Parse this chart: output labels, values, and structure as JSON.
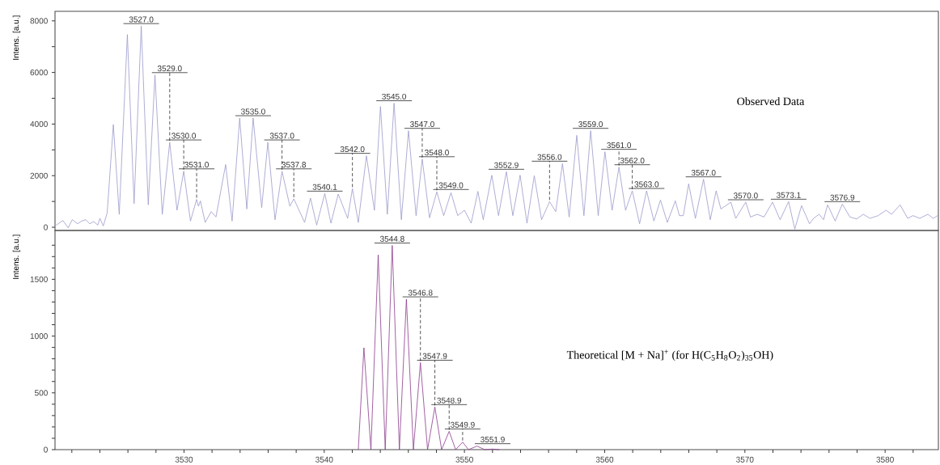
{
  "chart_data": [
    {
      "type": "line",
      "ylabel": "Intens. [a.u.]",
      "tick_labels": "y",
      "xlim": [
        3520.8,
        3583.8
      ],
      "ylim": [
        -125,
        8370
      ],
      "yticks": [
        0,
        {
          "value": 1000,
          "label": null
        },
        2000,
        {
          "value": 3000,
          "label": null
        },
        4000,
        {
          "value": 5000,
          "label": null
        },
        6000,
        {
          "value": 7000,
          "label": null
        },
        8000
      ],
      "x": [
        3520.88,
        3521.36,
        3521.74,
        3522.03,
        3522.41,
        3522.7,
        3522.99,
        3523.28,
        3523.56,
        3523.85,
        3524.0,
        3524.24,
        3524.52,
        3524.96,
        3525.38,
        3525.96,
        3526.44,
        3526.95,
        3527.45,
        3527.93,
        3528.45,
        3528.98,
        3529.5,
        3529.98,
        3530.46,
        3530.9,
        3531.03,
        3531.17,
        3531.51,
        3531.94,
        3532.28,
        3532.97,
        3533.43,
        3533.97,
        3534.48,
        3534.93,
        3535.54,
        3535.98,
        3536.49,
        3536.99,
        3537.55,
        3537.83,
        3538.12,
        3538.6,
        3539.02,
        3539.46,
        3540.04,
        3540.48,
        3541.0,
        3541.67,
        3542.01,
        3542.43,
        3543.01,
        3543.58,
        3544.01,
        3544.5,
        3544.98,
        3545.5,
        3546.01,
        3546.55,
        3546.99,
        3547.51,
        3548.03,
        3548.52,
        3549.04,
        3549.52,
        3550.0,
        3550.48,
        3550.96,
        3551.34,
        3551.95,
        3552.43,
        3552.99,
        3553.45,
        3553.97,
        3554.46,
        3554.98,
        3555.5,
        3556.07,
        3556.51,
        3556.99,
        3557.47,
        3558.01,
        3558.52,
        3559.0,
        3559.54,
        3560.02,
        3560.53,
        3561.02,
        3561.49,
        3561.97,
        3562.49,
        3562.99,
        3563.51,
        3563.98,
        3564.47,
        3565.04,
        3565.33,
        3565.61,
        3565.99,
        3566.47,
        3567.05,
        3567.53,
        3567.95,
        3568.29,
        3568.58,
        3569.0,
        3569.35,
        3570.06,
        3570.4,
        3570.88,
        3571.36,
        3571.97,
        3572.51,
        3573.12,
        3573.56,
        3574.04,
        3574.61,
        3574.9,
        3575.29,
        3575.61,
        3575.9,
        3576.44,
        3576.95,
        3577.49,
        3577.97,
        3578.45,
        3578.92,
        3579.5,
        3580.07,
        3580.46,
        3581.07,
        3581.61,
        3581.99,
        3582.47,
        3583.05,
        3583.43,
        3583.74
      ],
      "series": [
        {
          "name": "Observed Data",
          "color": "#9999cc",
          "values": [
            80,
            261,
            -20,
            293,
            136,
            240,
            293,
            136,
            219,
            84,
            345,
            52,
            554,
            3980,
            500,
            7470,
            920,
            7800,
            870,
            5900,
            500,
            3290,
            660,
            2170,
            240,
            1080,
            815,
            1020,
            190,
            605,
            400,
            2430,
            240,
            4230,
            710,
            4230,
            760,
            3290,
            290,
            2170,
            815,
            1100,
            760,
            190,
            1130,
            84,
            1306,
            157,
            1285,
            345,
            1494,
            188,
            2770,
            658,
            4680,
            502,
            4810,
            293,
            3740,
            450,
            2640,
            366,
            1370,
            450,
            1340,
            450,
            658,
            157,
            1390,
            293,
            2017,
            450,
            2153,
            450,
            2017,
            157,
            1996,
            293,
            993,
            606,
            2466,
            397,
            3563,
            450,
            3740,
            450,
            2926,
            658,
            2330,
            658,
            1410,
            136,
            1410,
            240,
            1055,
            188,
            1024,
            450,
            450,
            1682,
            345,
            1860,
            293,
            1410,
            710,
            815,
            972,
            345,
            972,
            397,
            502,
            397,
            972,
            293,
            993,
            -73,
            836,
            136,
            345,
            502,
            293,
            867,
            240,
            899,
            397,
            324,
            502,
            345,
            450,
            658,
            502,
            867,
            345,
            450,
            345,
            502,
            345,
            450
          ]
        }
      ],
      "annotations": [
        {
          "text": "3527.0",
          "x": 3526.95,
          "y": 7800
        },
        {
          "text": "3529.0",
          "x": 3528.98,
          "y": 3290
        },
        {
          "text": "3530.0",
          "x": 3529.98,
          "y": 2170
        },
        {
          "text": "3531.0",
          "x": 3530.9,
          "y": 1080
        },
        {
          "text": "3535.0",
          "x": 3534.93,
          "y": 4230
        },
        {
          "text": "3537.0",
          "x": 3536.99,
          "y": 2170
        },
        {
          "text": "3537.8",
          "x": 3537.83,
          "y": 1100
        },
        {
          "text": "3540.1",
          "x": 3540.04,
          "y": 1306
        },
        {
          "text": "3542.0",
          "x": 3542.01,
          "y": 1494
        },
        {
          "text": "3545.0",
          "x": 3544.98,
          "y": 4810
        },
        {
          "text": "3547.0",
          "x": 3546.99,
          "y": 2640
        },
        {
          "text": "3548.0",
          "x": 3548.03,
          "y": 1370
        },
        {
          "text": "3549.0",
          "x": 3549.04,
          "y": 1340
        },
        {
          "text": "3552.9",
          "x": 3552.99,
          "y": 2153
        },
        {
          "text": "3556.0",
          "x": 3556.07,
          "y": 993
        },
        {
          "text": "3559.0",
          "x": 3559.0,
          "y": 3740
        },
        {
          "text": "3561.0",
          "x": 3561.02,
          "y": 2330
        },
        {
          "text": "3562.0",
          "x": 3561.97,
          "y": 1410
        },
        {
          "text": "3563.0",
          "x": 3562.99,
          "y": 1410
        },
        {
          "text": "3567.0",
          "x": 3567.05,
          "y": 1860
        },
        {
          "text": "3570.0",
          "x": 3570.06,
          "y": 972
        },
        {
          "text": "3573.1",
          "x": 3573.12,
          "y": 993
        },
        {
          "text": "3576.9",
          "x": 3576.95,
          "y": 899
        }
      ]
    },
    {
      "type": "line",
      "ylabel": "Intens. [a.u.]",
      "xlim": [
        3520.8,
        3583.8
      ],
      "ylim": [
        0,
        1930
      ],
      "xticks": [
        {
          "value": 3522,
          "label": null
        },
        {
          "value": 3524,
          "label": null
        },
        {
          "value": 3526,
          "label": null
        },
        {
          "value": 3528,
          "label": null
        },
        3530,
        {
          "value": 3532,
          "label": null
        },
        {
          "value": 3534,
          "label": null
        },
        {
          "value": 3536,
          "label": null
        },
        {
          "value": 3538,
          "label": null
        },
        3540,
        {
          "value": 3542,
          "label": null
        },
        {
          "value": 3544,
          "label": null
        },
        {
          "value": 3546,
          "label": null
        },
        {
          "value": 3548,
          "label": null
        },
        3550,
        {
          "value": 3552,
          "label": null
        },
        {
          "value": 3554,
          "label": null
        },
        {
          "value": 3556,
          "label": null
        },
        {
          "value": 3558,
          "label": null
        },
        3560,
        {
          "value": 3562,
          "label": null
        },
        {
          "value": 3564,
          "label": null
        },
        {
          "value": 3566,
          "label": null
        },
        {
          "value": 3568,
          "label": null
        },
        3570,
        {
          "value": 3572,
          "label": null
        },
        {
          "value": 3574,
          "label": null
        },
        {
          "value": 3576,
          "label": null
        },
        {
          "value": 3578,
          "label": null
        },
        3580,
        {
          "value": 3582,
          "label": null
        }
      ],
      "yticks": [
        0,
        {
          "value": 100,
          "label": null
        },
        {
          "value": 200,
          "label": null
        },
        {
          "value": 300,
          "label": null
        },
        {
          "value": 400,
          "label": null
        },
        500,
        {
          "value": 600,
          "label": null
        },
        {
          "value": 700,
          "label": null
        },
        {
          "value": 800,
          "label": null
        },
        {
          "value": 900,
          "label": null
        },
        1000,
        {
          "value": 1100,
          "label": null
        },
        {
          "value": 1200,
          "label": null
        },
        {
          "value": 1300,
          "label": null
        },
        {
          "value": 1400,
          "label": null
        },
        1500,
        {
          "value": 1600,
          "label": null
        },
        {
          "value": 1700,
          "label": null
        },
        {
          "value": 1800,
          "label": null
        }
      ],
      "x": [
        3542.43,
        3542.83,
        3543.33,
        3543.85,
        3544.35,
        3544.85,
        3545.36,
        3545.86,
        3546.36,
        3546.86,
        3547.37,
        3547.89,
        3548.37,
        3548.91,
        3549.37,
        3549.87,
        3550.29,
        3550.9,
        3551.44,
        3552.01,
        3552.5
      ],
      "series": [
        {
          "name": "Theoretical [M + Na]$^{+}$ (for H(C$_{5}$H$_{8}$O$_{2}$)$_{35}$OH)",
          "color": "#8b3a8b",
          "values": [
            0,
            897,
            0,
            1715,
            0,
            1798,
            0,
            1324,
            0,
            766,
            0,
            375,
            0,
            161,
            0,
            66,
            0,
            31,
            0,
            5,
            0
          ]
        }
      ],
      "annotations": [
        {
          "text": "3544.8",
          "x": 3544.85,
          "y": 1798
        },
        {
          "text": "3546.8",
          "x": 3546.86,
          "y": 766
        },
        {
          "text": "3547.9",
          "x": 3547.89,
          "y": 375
        },
        {
          "text": "3548.9",
          "x": 3548.91,
          "y": 161
        },
        {
          "text": "3549.9",
          "x": 3549.87,
          "y": 66
        },
        {
          "text": "3551.9",
          "x": 3552.01,
          "y": 5
        }
      ]
    }
  ]
}
